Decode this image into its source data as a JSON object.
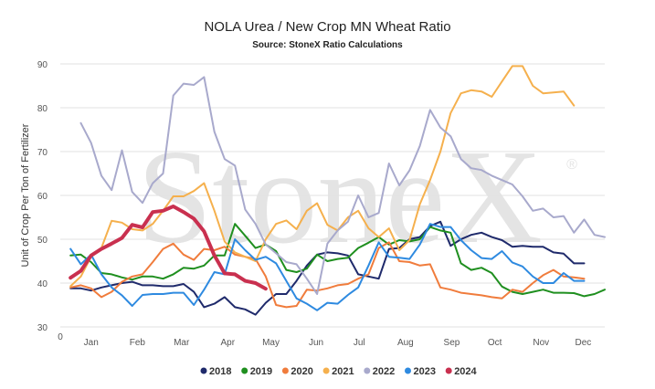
{
  "chart_data": {
    "type": "line",
    "title": "NOLA Urea / New Crop MN Wheat Ratio",
    "subtitle": "Source: StoneX Ratio Calculations",
    "ylabel": "Unit of Crop Per Ton of Fertilizer",
    "watermark": "StoneX",
    "ylim": [
      30,
      90
    ],
    "y_ticks": [
      30,
      40,
      50,
      60,
      70,
      80,
      90
    ],
    "x_origin_label": "0",
    "x_range": [
      0,
      53
    ],
    "x_ticks": [
      {
        "label": "Jan",
        "week": 3
      },
      {
        "label": "Feb",
        "week": 7.5
      },
      {
        "label": "Mar",
        "week": 11.8
      },
      {
        "label": "Apr",
        "week": 16.3
      },
      {
        "label": "May",
        "week": 20.5
      },
      {
        "label": "Jun",
        "week": 24.9
      },
      {
        "label": "Jul",
        "week": 29.1
      },
      {
        "label": "Aug",
        "week": 33.6
      },
      {
        "label": "Sep",
        "week": 38.1
      },
      {
        "label": "Oct",
        "week": 42.3
      },
      {
        "label": "Nov",
        "week": 46.8
      },
      {
        "label": "Dec",
        "week": 50.9
      }
    ],
    "grid": "horizontal",
    "legend_position": "bottom",
    "series": [
      {
        "name": "2018",
        "color": "#1f2a6b",
        "width": 2,
        "x_start": 1,
        "values": [
          38.8,
          38.8,
          38.3,
          39,
          39.5,
          40,
          40.3,
          39.5,
          39.5,
          39.3,
          39.3,
          39.8,
          38,
          34.5,
          35.3,
          36.8,
          34.5,
          34,
          32.8,
          35.5,
          37.5,
          37.5,
          40.5,
          44,
          46.5,
          47,
          46.8,
          46.3,
          42,
          41.5,
          41,
          47.8,
          48,
          50,
          50.5,
          53,
          54,
          48.5,
          50,
          51,
          51.5,
          50.5,
          49.8,
          48.3,
          48.5,
          48.3,
          48.3,
          47,
          46.7,
          44.5,
          44.5
        ]
      },
      {
        "name": "2019",
        "color": "#1f8f1f",
        "width": 2,
        "x_start": 1,
        "values": [
          46.3,
          46.5,
          44.8,
          42.3,
          42,
          41.3,
          40.8,
          41.5,
          41.5,
          41,
          42,
          43.5,
          43.3,
          44,
          46.3,
          46.3,
          53.5,
          50.8,
          48,
          48.8,
          47.3,
          43,
          42.5,
          43.3,
          46.5,
          45,
          45.5,
          45.8,
          48,
          49.2,
          50.5,
          48.8,
          49.8,
          49.5,
          50,
          52.8,
          52,
          51.5,
          44.5,
          43,
          43.5,
          42.3,
          39.2,
          38,
          37.5,
          38,
          38.5,
          37.8,
          37.8,
          37.7,
          37,
          37.5,
          38.5
        ]
      },
      {
        "name": "2020",
        "color": "#f07c3c",
        "width": 2,
        "x_start": 1,
        "values": [
          39,
          39.5,
          38.8,
          36.8,
          38,
          40.3,
          41.5,
          42,
          44.8,
          47.8,
          49,
          46.5,
          45.3,
          47.8,
          47.5,
          48.3,
          46.5,
          46,
          45.5,
          41.5,
          35,
          34.5,
          34.8,
          38.5,
          38.3,
          38.8,
          39.5,
          39.8,
          41,
          42,
          48,
          49.3,
          45,
          44.8,
          44,
          44.3,
          39,
          38.5,
          37.8,
          37.5,
          37.2,
          36.8,
          36.5,
          38.5,
          38,
          40,
          41.8,
          43,
          41.5,
          41.3,
          41
        ]
      },
      {
        "name": "2021",
        "color": "#f5b04d",
        "width": 2,
        "x_start": 1,
        "values": [
          39.3,
          41.5,
          46,
          48,
          54.2,
          53.8,
          52.3,
          52,
          53.5,
          56.5,
          59.8,
          59.8,
          61,
          62.8,
          56.5,
          49.5,
          47,
          46,
          45,
          50,
          53.5,
          54.3,
          52.3,
          56.5,
          58.2,
          53.3,
          52,
          55,
          56.5,
          52.5,
          50.5,
          52.5,
          47.5,
          49.8,
          58,
          63.5,
          70,
          78.8,
          83.3,
          84,
          83.7,
          82.5,
          86,
          89.5,
          89.5,
          85,
          83.3,
          83.5,
          83.7,
          80.5
        ]
      },
      {
        "name": "2022",
        "color": "#a8a9cc",
        "width": 2,
        "x_start": 2,
        "values": [
          76.5,
          72,
          64.5,
          61.2,
          70.3,
          60.8,
          58.3,
          62.8,
          65,
          82.8,
          85.5,
          85.2,
          87,
          74.5,
          68.3,
          66.8,
          56.8,
          53.5,
          48.8,
          46.8,
          44.8,
          44.3,
          41,
          37.5,
          49,
          52,
          54,
          60,
          55,
          56,
          67.3,
          62.3,
          65.7,
          71.3,
          79.5,
          75.5,
          73.5,
          68.3,
          66.2,
          65.8,
          64.5,
          63.5,
          62.5,
          59.8,
          56.5,
          57,
          55,
          55.3,
          51.5,
          54.5,
          51,
          50.5
        ]
      },
      {
        "name": "2023",
        "color": "#2e8ae0",
        "width": 2,
        "x_start": 1,
        "values": [
          47.8,
          44.3,
          46.5,
          42,
          39,
          37.2,
          34.8,
          37.3,
          37.5,
          37.5,
          37.8,
          37.8,
          35,
          38.5,
          42.5,
          42,
          50,
          47.5,
          45.3,
          46,
          44.5,
          40.5,
          36.5,
          35.3,
          33.8,
          35.5,
          35.3,
          37.3,
          39,
          44,
          49.3,
          46,
          45.8,
          45.5,
          48.8,
          53.5,
          52.8,
          52.8,
          49.8,
          47.5,
          45.7,
          45.5,
          47.3,
          44.7,
          43.8,
          41.5,
          40,
          40,
          42.3,
          40.5,
          40.5
        ]
      },
      {
        "name": "2024",
        "color": "#c9304f",
        "width": 4,
        "x_start": 1,
        "values": [
          41.2,
          42.8,
          46.3,
          47.8,
          49,
          50.3,
          53.3,
          52.7,
          56.2,
          56.5,
          57.5,
          56.2,
          54.7,
          51.8,
          46.3,
          42.2,
          42,
          40.5,
          40,
          38.7
        ]
      }
    ]
  }
}
